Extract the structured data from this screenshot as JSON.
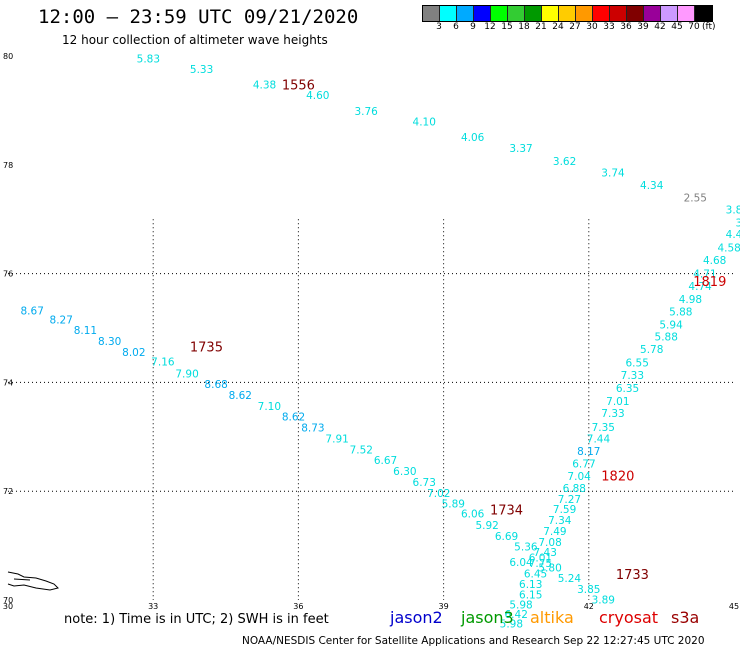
{
  "header": {
    "title": "12:00 — 23:59 UTC 09/21/2020",
    "subtitle": "12 hour collection of altimeter wave heights"
  },
  "colorbar": {
    "colors": [
      "#808080",
      "#00ffff",
      "#00aaff",
      "#0000ff",
      "#00ff00",
      "#33cc33",
      "#009900",
      "#ffff00",
      "#ffcc00",
      "#ff9900",
      "#ff0000",
      "#cc0000",
      "#800000",
      "#990099",
      "#cc99ff",
      "#ff99ff",
      "#000000"
    ],
    "labels": [
      "3",
      "6",
      "9",
      "12",
      "15",
      "18",
      "21",
      "24",
      "27",
      "30",
      "33",
      "36",
      "39",
      "42",
      "45",
      "70"
    ],
    "unit": "(ft)"
  },
  "map": {
    "lon_labels": [
      "30",
      "33",
      "36",
      "39",
      "42",
      "45"
    ],
    "lat_labels": [
      "80",
      "78",
      "76",
      "74",
      "72",
      "70"
    ],
    "lon_ticks": [
      30,
      33,
      36,
      39,
      42,
      45
    ],
    "lat_ticks": [
      80,
      78,
      76,
      74,
      72,
      70
    ],
    "time_labels": [
      {
        "text": "1556",
        "color": "#800000",
        "lon": 36.0,
        "lat": 79.48
      },
      {
        "text": "1735",
        "color": "#800000",
        "lon": 34.1,
        "lat": 74.66
      },
      {
        "text": "1734",
        "color": "#800000",
        "lon": 40.3,
        "lat": 71.66
      },
      {
        "text": "1733",
        "color": "#800000",
        "lon": 42.9,
        "lat": 70.48
      },
      {
        "text": "1819",
        "color": "#cc0000",
        "lon": 44.5,
        "lat": 75.86
      },
      {
        "text": "1820",
        "color": "#cc0000",
        "lon": 42.6,
        "lat": 72.29
      }
    ],
    "tracks": [
      {
        "name": "track-1556",
        "points": [
          {
            "v": "5.83",
            "lon": 32.9,
            "lat": 79.95,
            "c": "#00dddd"
          },
          {
            "v": "5.33",
            "lon": 34.0,
            "lat": 79.76,
            "c": "#00dddd"
          },
          {
            "v": "4.38",
            "lon": 35.3,
            "lat": 79.48,
            "c": "#00dddd"
          },
          {
            "v": "4.60",
            "lon": 36.4,
            "lat": 79.28,
            "c": "#00dddd"
          },
          {
            "v": "3.76",
            "lon": 37.4,
            "lat": 78.99,
            "c": "#00dddd"
          },
          {
            "v": "4.10",
            "lon": 38.6,
            "lat": 78.8,
            "c": "#00dddd"
          },
          {
            "v": "4.06",
            "lon": 39.6,
            "lat": 78.51,
            "c": "#00dddd"
          },
          {
            "v": "3.37",
            "lon": 40.6,
            "lat": 78.31,
            "c": "#00dddd"
          },
          {
            "v": "3.62",
            "lon": 41.5,
            "lat": 78.07,
            "c": "#00dddd"
          },
          {
            "v": "3.74",
            "lon": 42.5,
            "lat": 77.86,
            "c": "#00dddd"
          },
          {
            "v": "4.34",
            "lon": 43.3,
            "lat": 77.63,
            "c": "#00dddd"
          },
          {
            "v": "2.55",
            "lon": 44.2,
            "lat": 77.4,
            "c": "#808080"
          },
          {
            "v": "3.8",
            "lon": 45.0,
            "lat": 77.18,
            "c": "#00dddd"
          },
          {
            "v": "3",
            "lon": 45.1,
            "lat": 76.94,
            "c": "#00dddd"
          },
          {
            "v": "4.4",
            "lon": 45.0,
            "lat": 76.73,
            "c": "#00dddd"
          }
        ]
      },
      {
        "name": "track-1819",
        "points": [
          {
            "v": "4.58",
            "lon": 44.9,
            "lat": 76.48,
            "c": "#00dddd"
          },
          {
            "v": "4.68",
            "lon": 44.6,
            "lat": 76.25,
            "c": "#00dddd"
          },
          {
            "v": "4.71",
            "lon": 44.4,
            "lat": 76.0,
            "c": "#00dddd"
          },
          {
            "v": "4.74",
            "lon": 44.3,
            "lat": 75.77,
            "c": "#00dddd"
          },
          {
            "v": "4.98",
            "lon": 44.1,
            "lat": 75.53,
            "c": "#00dddd"
          },
          {
            "v": "5.88",
            "lon": 43.9,
            "lat": 75.3,
            "c": "#00dddd"
          },
          {
            "v": "5.94",
            "lon": 43.7,
            "lat": 75.06,
            "c": "#00dddd"
          },
          {
            "v": "5.88",
            "lon": 43.6,
            "lat": 74.84,
            "c": "#00dddd"
          },
          {
            "v": "5.78",
            "lon": 43.3,
            "lat": 74.61,
            "c": "#00dddd"
          },
          {
            "v": "6.55",
            "lon": 43.0,
            "lat": 74.37,
            "c": "#00dddd"
          },
          {
            "v": "7.33",
            "lon": 42.9,
            "lat": 74.14,
            "c": "#00dddd"
          },
          {
            "v": "6.35",
            "lon": 42.8,
            "lat": 73.9,
            "c": "#00dddd"
          },
          {
            "v": "7.01",
            "lon": 42.6,
            "lat": 73.66,
            "c": "#00dddd"
          },
          {
            "v": "7.33",
            "lon": 42.5,
            "lat": 73.44,
            "c": "#00dddd"
          },
          {
            "v": "7.35",
            "lon": 42.3,
            "lat": 73.18,
            "c": "#00dddd"
          },
          {
            "v": "7.44",
            "lon": 42.2,
            "lat": 72.97,
            "c": "#00dddd"
          },
          {
            "v": "8.17",
            "lon": 42.0,
            "lat": 72.74,
            "c": "#00aaee"
          },
          {
            "v": "6.77",
            "lon": 41.9,
            "lat": 72.51,
            "c": "#00dddd"
          },
          {
            "v": "7.04",
            "lon": 41.8,
            "lat": 72.28,
            "c": "#00dddd"
          },
          {
            "v": "6.88",
            "lon": 41.7,
            "lat": 72.06,
            "c": "#00dddd"
          },
          {
            "v": "7.27",
            "lon": 41.6,
            "lat": 71.86,
            "c": "#00dddd"
          },
          {
            "v": "7.59",
            "lon": 41.5,
            "lat": 71.67,
            "c": "#00dddd"
          },
          {
            "v": "7.34",
            "lon": 41.4,
            "lat": 71.47,
            "c": "#00dddd"
          },
          {
            "v": "7.49",
            "lon": 41.3,
            "lat": 71.27,
            "c": "#00dddd"
          },
          {
            "v": "7.08",
            "lon": 41.2,
            "lat": 71.07,
            "c": "#00dddd"
          },
          {
            "v": "7.43",
            "lon": 41.1,
            "lat": 70.88,
            "c": "#00dddd"
          },
          {
            "v": "7.75",
            "lon": 41.0,
            "lat": 70.68,
            "c": "#00dddd"
          },
          {
            "v": "6.45",
            "lon": 40.9,
            "lat": 70.49,
            "c": "#00dddd"
          },
          {
            "v": "6.13",
            "lon": 40.8,
            "lat": 70.29,
            "c": "#00dddd"
          },
          {
            "v": "6.15",
            "lon": 40.8,
            "lat": 70.1,
            "c": "#00dddd"
          },
          {
            "v": "5.98",
            "lon": 40.6,
            "lat": 69.92,
            "c": "#00dddd"
          },
          {
            "v": "6.42",
            "lon": 40.5,
            "lat": 69.74,
            "c": "#00dddd"
          },
          {
            "v": "5.98",
            "lon": 40.4,
            "lat": 69.57,
            "c": "#00dddd"
          }
        ]
      },
      {
        "name": "track-1735",
        "points": [
          {
            "v": "8.67",
            "lon": 30.5,
            "lat": 75.32,
            "c": "#00aaee"
          },
          {
            "v": "8.27",
            "lon": 31.1,
            "lat": 75.16,
            "c": "#00aaee"
          },
          {
            "v": "8.11",
            "lon": 31.6,
            "lat": 74.96,
            "c": "#00aaee"
          },
          {
            "v": "8.30",
            "lon": 32.1,
            "lat": 74.76,
            "c": "#00aaee"
          },
          {
            "v": "8.02",
            "lon": 32.6,
            "lat": 74.56,
            "c": "#00aaee"
          },
          {
            "v": "7.16",
            "lon": 33.2,
            "lat": 74.38,
            "c": "#00dddd"
          },
          {
            "v": "7.90",
            "lon": 33.7,
            "lat": 74.16,
            "c": "#00dddd"
          },
          {
            "v": "8.68",
            "lon": 34.3,
            "lat": 73.97,
            "c": "#00aaee"
          },
          {
            "v": "8.62",
            "lon": 34.8,
            "lat": 73.77,
            "c": "#00aaee"
          },
          {
            "v": "7.10",
            "lon": 35.4,
            "lat": 73.57,
            "c": "#00dddd"
          },
          {
            "v": "8.62",
            "lon": 35.9,
            "lat": 73.37,
            "c": "#00aaee"
          },
          {
            "v": "8.73",
            "lon": 36.3,
            "lat": 73.17,
            "c": "#00aaee"
          },
          {
            "v": "7.91",
            "lon": 36.8,
            "lat": 72.97,
            "c": "#00dddd"
          },
          {
            "v": "7.52",
            "lon": 37.3,
            "lat": 72.77,
            "c": "#00dddd"
          },
          {
            "v": "6.67",
            "lon": 37.8,
            "lat": 72.57,
            "c": "#00dddd"
          },
          {
            "v": "6.30",
            "lon": 38.2,
            "lat": 72.37,
            "c": "#00dddd"
          },
          {
            "v": "6.73",
            "lon": 38.6,
            "lat": 72.17,
            "c": "#00dddd"
          },
          {
            "v": "7.02",
            "lon": 38.9,
            "lat": 71.97,
            "c": "#00dddd"
          },
          {
            "v": "5.89",
            "lon": 39.2,
            "lat": 71.77,
            "c": "#00dddd"
          },
          {
            "v": "6.06",
            "lon": 39.6,
            "lat": 71.59,
            "c": "#00dddd"
          },
          {
            "v": "5.92",
            "lon": 39.9,
            "lat": 71.38,
            "c": "#00dddd"
          },
          {
            "v": "6.69",
            "lon": 40.3,
            "lat": 71.18,
            "c": "#00dddd"
          },
          {
            "v": "5.36",
            "lon": 40.7,
            "lat": 70.98,
            "c": "#00dddd"
          },
          {
            "v": "6.01",
            "lon": 41.0,
            "lat": 70.78,
            "c": "#00dddd"
          },
          {
            "v": "5.80",
            "lon": 41.2,
            "lat": 70.6,
            "c": "#00dddd"
          },
          {
            "v": "5.24",
            "lon": 41.6,
            "lat": 70.4,
            "c": "#00dddd"
          },
          {
            "v": "3.85",
            "lon": 42.0,
            "lat": 70.2,
            "c": "#00dddd"
          },
          {
            "v": "3.89",
            "lon": 42.3,
            "lat": 70.01,
            "c": "#00dddd"
          }
        ]
      },
      {
        "name": "track-1734",
        "points": [
          {
            "v": "6.04",
            "lon": 40.6,
            "lat": 70.7,
            "c": "#00dddd"
          }
        ]
      }
    ]
  },
  "footer": {
    "note": "note:  1) Time is in UTC;  2) SWH is in feet",
    "satellites": [
      {
        "name": "jason2",
        "color": "#0000cc"
      },
      {
        "name": "jason3",
        "color": "#009900"
      },
      {
        "name": "altika",
        "color": "#ff9900"
      },
      {
        "name": "cryosat",
        "color": "#dd0000"
      },
      {
        "name": "s3a",
        "color": "#990000"
      }
    ],
    "credit": "NOAA/NESDIS Center for Satellite Applications and Research      Sep 22 12:27:45 UTC 2020"
  }
}
